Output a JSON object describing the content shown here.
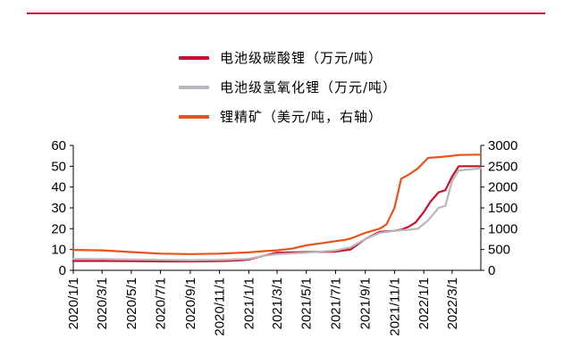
{
  "chart_data": {
    "type": "line",
    "x_ticks": [
      "2020/1/1",
      "2020/3/1",
      "2020/5/1",
      "2020/7/1",
      "2020/9/1",
      "2020/11/1",
      "2021/1/1",
      "2021/3/1",
      "2021/5/1",
      "2021/7/1",
      "2021/9/1",
      "2021/11/1",
      "2022/1/1",
      "2022/3/1"
    ],
    "y_left": {
      "ticks": [
        "0",
        "10",
        "20",
        "30",
        "40",
        "50",
        "60"
      ],
      "ylim": [
        0,
        60
      ]
    },
    "y_right": {
      "ticks": [
        "0",
        "500",
        "1000",
        "1500",
        "2000",
        "2500",
        "3000"
      ],
      "ylim": [
        0,
        3000
      ]
    },
    "xlim": [
      "2020/1/1",
      "2022/4/30"
    ],
    "grid": false,
    "legend_position": "top-center",
    "series": [
      {
        "name": "电池级碳酸锂（万元/吨）",
        "axis": "left",
        "color": "#c8102e",
        "x": [
          "2020/1/1",
          "2020/3/1",
          "2020/5/1",
          "2020/7/1",
          "2020/9/1",
          "2020/11/1",
          "2020/12/15",
          "2021/1/1",
          "2021/2/1",
          "2021/3/1",
          "2021/5/1",
          "2021/7/1",
          "2021/8/1",
          "2021/9/1",
          "2021/10/1",
          "2021/11/1",
          "2021/11/15",
          "2021/12/1",
          "2021/12/15",
          "2022/1/1",
          "2022/1/15",
          "2022/2/1",
          "2022/2/15",
          "2022/3/1",
          "2022/3/15",
          "2022/4/30"
        ],
        "y": [
          4.5,
          4.5,
          4.4,
          4.3,
          4.3,
          4.4,
          4.8,
          5.2,
          7.0,
          8.5,
          8.8,
          9.0,
          10.0,
          15.0,
          18.5,
          19.0,
          19.5,
          21.0,
          23.0,
          28.0,
          33.0,
          37.5,
          38.5,
          45.0,
          50.0,
          50.0
        ]
      },
      {
        "name": "电池级氢氧化锂（万元/吨）",
        "axis": "left",
        "color": "#b7b7bd",
        "x": [
          "2020/1/1",
          "2020/3/1",
          "2020/5/1",
          "2020/7/1",
          "2020/9/1",
          "2020/11/1",
          "2021/1/1",
          "2021/2/1",
          "2021/3/1",
          "2021/5/1",
          "2021/7/1",
          "2021/8/1",
          "2021/9/1",
          "2021/10/1",
          "2021/11/1",
          "2021/12/1",
          "2021/12/20",
          "2022/1/10",
          "2022/2/1",
          "2022/2/15",
          "2022/3/1",
          "2022/3/15",
          "2022/4/30"
        ],
        "y": [
          5.5,
          5.4,
          5.2,
          5.0,
          4.9,
          5.0,
          5.5,
          7.0,
          7.8,
          8.5,
          9.5,
          11.0,
          15.0,
          18.0,
          19.0,
          19.5,
          20.0,
          24.0,
          30.0,
          31.0,
          43.0,
          48.0,
          49.0
        ]
      },
      {
        "name": "锂精矿（美元/吨，右轴）",
        "axis": "right",
        "color": "#e8531b",
        "x": [
          "2020/1/1",
          "2020/3/1",
          "2020/5/1",
          "2020/7/1",
          "2020/9/1",
          "2020/11/1",
          "2021/1/1",
          "2021/2/1",
          "2021/3/1",
          "2021/4/1",
          "2021/5/1",
          "2021/6/1",
          "2021/7/1",
          "2021/7/20",
          "2021/8/1",
          "2021/9/1",
          "2021/10/1",
          "2021/10/15",
          "2021/11/1",
          "2021/11/15",
          "2021/12/1",
          "2021/12/20",
          "2022/1/10",
          "2022/2/1",
          "2022/3/1",
          "2022/3/15",
          "2022/4/30"
        ],
        "y": [
          490,
          480,
          440,
          400,
          390,
          400,
          430,
          460,
          480,
          520,
          600,
          650,
          700,
          730,
          760,
          900,
          1000,
          1100,
          1500,
          2200,
          2300,
          2450,
          2700,
          2720,
          2750,
          2770,
          2780
        ]
      }
    ]
  }
}
